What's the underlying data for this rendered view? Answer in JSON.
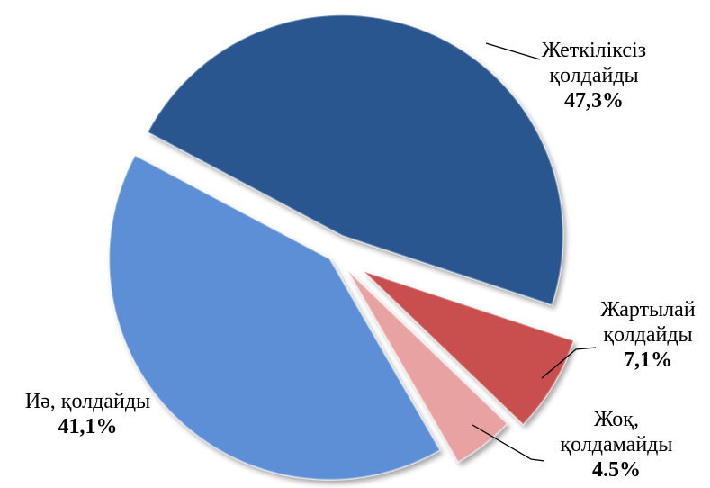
{
  "chart_data": {
    "type": "pie",
    "categories": [
      "Жеткіліксіз қолдайды",
      "Жартылай қолдайды",
      "Жоқ, қолдамайды",
      "Иә, қолдайды"
    ],
    "values": [
      47.3,
      7.1,
      4.5,
      41.1
    ],
    "value_labels": [
      "47,3%",
      "7,1%",
      "4.5%",
      "41,1%"
    ],
    "colors": [
      "#2b578f",
      "#c8504d",
      "#e8a2a2",
      "#5b8fd5"
    ]
  }
}
